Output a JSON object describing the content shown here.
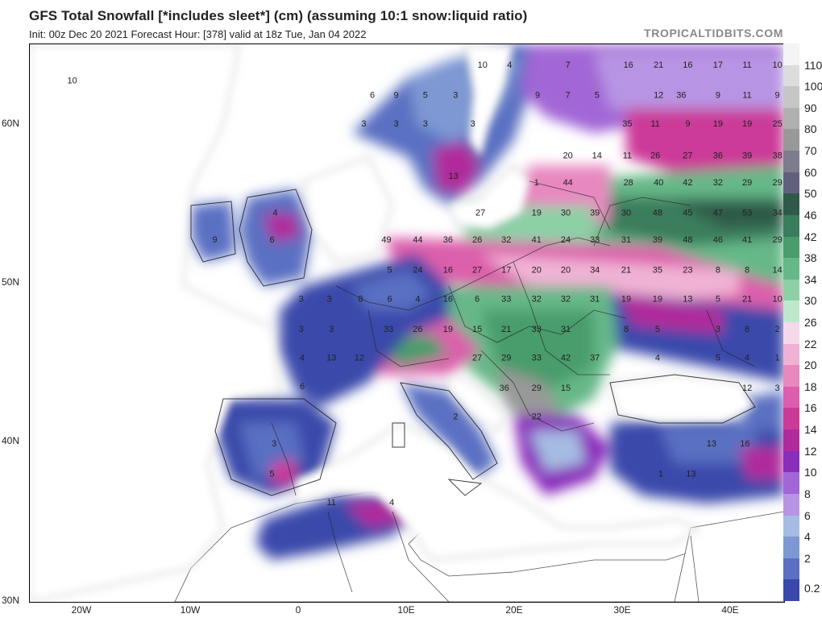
{
  "title": "GFS Total Snowfall [*includes sleet*] (cm) (assuming 10:1 snow:liquid ratio)",
  "subtitle": "Init: 00z Dec 20 2021   Forecast Hour: [378]   valid at 18z Tue, Jan 04 2022",
  "brand": "TROPICALTIDBITS.COM",
  "lat_labels": [
    "60N",
    "50N",
    "40N",
    "30N"
  ],
  "lon_labels": [
    "20W",
    "10W",
    "0",
    "10E",
    "20E",
    "30E",
    "40E"
  ],
  "colorbar": {
    "labels": [
      "110",
      "100",
      "90",
      "80",
      "70",
      "60",
      "50",
      "46",
      "42",
      "38",
      "34",
      "30",
      "26",
      "22",
      "20",
      "18",
      "16",
      "14",
      "12",
      "10",
      "8",
      "6",
      "4",
      "2",
      "0.2"
    ],
    "colors": [
      "#f4f4f4",
      "#dcdcdc",
      "#c6c6c6",
      "#b0b0b0",
      "#989898",
      "#7c7c8c",
      "#60607e",
      "#2f5a4a",
      "#3a7d5c",
      "#4a9c6c",
      "#66b888",
      "#8dd0a6",
      "#bde8cc",
      "#f6d8ea",
      "#f0b2d4",
      "#e888c0",
      "#dc5eac",
      "#cc3a98",
      "#b02a9c",
      "#8a2cbc",
      "#a266d6",
      "#b894e4",
      "#a6bce2",
      "#7e98d4",
      "#5a70c2",
      "#3a48aa"
    ]
  },
  "map_values": [
    {
      "t": "10",
      "lon": -21.0,
      "lat": 62.8
    },
    {
      "t": "10",
      "lon": 17.0,
      "lat": 63.8
    },
    {
      "t": "4",
      "lon": 19.5,
      "lat": 63.8
    },
    {
      "t": "7",
      "lon": 24.9,
      "lat": 63.8
    },
    {
      "t": "16",
      "lon": 30.5,
      "lat": 63.8
    },
    {
      "t": "21",
      "lon": 33.3,
      "lat": 63.8
    },
    {
      "t": "16",
      "lon": 36.0,
      "lat": 63.8
    },
    {
      "t": "17",
      "lon": 38.8,
      "lat": 63.8
    },
    {
      "t": "11",
      "lon": 41.5,
      "lat": 63.8
    },
    {
      "t": "10",
      "lon": 44.3,
      "lat": 63.8
    },
    {
      "t": "6",
      "lon": 6.8,
      "lat": 61.9
    },
    {
      "t": "9",
      "lon": 9.0,
      "lat": 61.9
    },
    {
      "t": "5",
      "lon": 11.7,
      "lat": 61.9
    },
    {
      "t": "3",
      "lon": 14.5,
      "lat": 61.9
    },
    {
      "t": "9",
      "lon": 22.1,
      "lat": 61.9
    },
    {
      "t": "7",
      "lon": 24.9,
      "lat": 61.9
    },
    {
      "t": "5",
      "lon": 27.6,
      "lat": 61.9
    },
    {
      "t": "12",
      "lon": 33.3,
      "lat": 61.9
    },
    {
      "t": "36",
      "lon": 35.4,
      "lat": 61.9
    },
    {
      "t": "9",
      "lon": 38.8,
      "lat": 61.9
    },
    {
      "t": "11",
      "lon": 41.5,
      "lat": 61.9
    },
    {
      "t": "9",
      "lon": 44.3,
      "lat": 61.9
    },
    {
      "t": "3",
      "lon": 6.0,
      "lat": 60.1
    },
    {
      "t": "3",
      "lon": 9.0,
      "lat": 60.1
    },
    {
      "t": "3",
      "lon": 11.7,
      "lat": 60.1
    },
    {
      "t": "3",
      "lon": 16.1,
      "lat": 60.1
    },
    {
      "t": "35",
      "lon": 30.4,
      "lat": 60.1
    },
    {
      "t": "11",
      "lon": 33.0,
      "lat": 60.1
    },
    {
      "t": "9",
      "lon": 36.0,
      "lat": 60.1
    },
    {
      "t": "19",
      "lon": 38.8,
      "lat": 60.1
    },
    {
      "t": "19",
      "lon": 41.5,
      "lat": 60.1
    },
    {
      "t": "25",
      "lon": 44.3,
      "lat": 60.1
    },
    {
      "t": "20",
      "lon": 24.9,
      "lat": 58.1
    },
    {
      "t": "14",
      "lon": 27.6,
      "lat": 58.1
    },
    {
      "t": "11",
      "lon": 30.4,
      "lat": 58.1
    },
    {
      "t": "26",
      "lon": 33.0,
      "lat": 58.1
    },
    {
      "t": "27",
      "lon": 36.0,
      "lat": 58.1
    },
    {
      "t": "36",
      "lon": 38.8,
      "lat": 58.1
    },
    {
      "t": "39",
      "lon": 41.5,
      "lat": 58.1
    },
    {
      "t": "38",
      "lon": 44.3,
      "lat": 58.1
    },
    {
      "t": "13",
      "lon": 14.3,
      "lat": 56.8
    },
    {
      "t": "1",
      "lon": 22.0,
      "lat": 56.4
    },
    {
      "t": "44",
      "lon": 24.9,
      "lat": 56.4
    },
    {
      "t": "28",
      "lon": 30.5,
      "lat": 56.4
    },
    {
      "t": "40",
      "lon": 33.3,
      "lat": 56.4
    },
    {
      "t": "42",
      "lon": 36.0,
      "lat": 56.4
    },
    {
      "t": "32",
      "lon": 38.8,
      "lat": 56.4
    },
    {
      "t": "29",
      "lon": 41.5,
      "lat": 56.4
    },
    {
      "t": "29",
      "lon": 44.3,
      "lat": 56.4
    },
    {
      "t": "4",
      "lon": -2.2,
      "lat": 54.5
    },
    {
      "t": "27",
      "lon": 16.8,
      "lat": 54.5
    },
    {
      "t": "19",
      "lon": 22.0,
      "lat": 54.5
    },
    {
      "t": "30",
      "lon": 24.7,
      "lat": 54.5
    },
    {
      "t": "39",
      "lon": 27.4,
      "lat": 54.5
    },
    {
      "t": "30",
      "lon": 30.3,
      "lat": 54.5
    },
    {
      "t": "48",
      "lon": 33.2,
      "lat": 54.5
    },
    {
      "t": "45",
      "lon": 36.0,
      "lat": 54.5
    },
    {
      "t": "47",
      "lon": 38.8,
      "lat": 54.5
    },
    {
      "t": "53",
      "lon": 41.5,
      "lat": 54.5
    },
    {
      "t": "34",
      "lon": 44.3,
      "lat": 54.5
    },
    {
      "t": "9",
      "lon": -7.8,
      "lat": 52.8
    },
    {
      "t": "6",
      "lon": -2.5,
      "lat": 52.8
    },
    {
      "t": "49",
      "lon": 8.1,
      "lat": 52.8
    },
    {
      "t": "44",
      "lon": 11.0,
      "lat": 52.8
    },
    {
      "t": "36",
      "lon": 13.8,
      "lat": 52.8
    },
    {
      "t": "26",
      "lon": 16.5,
      "lat": 52.8
    },
    {
      "t": "32",
      "lon": 19.2,
      "lat": 52.8
    },
    {
      "t": "41",
      "lon": 22.0,
      "lat": 52.8
    },
    {
      "t": "24",
      "lon": 24.7,
      "lat": 52.8
    },
    {
      "t": "33",
      "lon": 27.4,
      "lat": 52.8
    },
    {
      "t": "31",
      "lon": 30.3,
      "lat": 52.8
    },
    {
      "t": "39",
      "lon": 33.2,
      "lat": 52.8
    },
    {
      "t": "48",
      "lon": 36.0,
      "lat": 52.8
    },
    {
      "t": "46",
      "lon": 38.8,
      "lat": 52.8
    },
    {
      "t": "41",
      "lon": 41.5,
      "lat": 52.8
    },
    {
      "t": "29",
      "lon": 44.3,
      "lat": 52.8
    },
    {
      "t": "5",
      "lon": 8.4,
      "lat": 50.9
    },
    {
      "t": "24",
      "lon": 11.0,
      "lat": 50.9
    },
    {
      "t": "16",
      "lon": 13.8,
      "lat": 50.9
    },
    {
      "t": "27",
      "lon": 16.5,
      "lat": 50.9
    },
    {
      "t": "17",
      "lon": 19.2,
      "lat": 50.9
    },
    {
      "t": "20",
      "lon": 22.0,
      "lat": 50.9
    },
    {
      "t": "20",
      "lon": 24.7,
      "lat": 50.9
    },
    {
      "t": "34",
      "lon": 27.4,
      "lat": 50.9
    },
    {
      "t": "21",
      "lon": 30.3,
      "lat": 50.9
    },
    {
      "t": "35",
      "lon": 33.2,
      "lat": 50.9
    },
    {
      "t": "23",
      "lon": 36.0,
      "lat": 50.9
    },
    {
      "t": "8",
      "lon": 38.8,
      "lat": 50.9
    },
    {
      "t": "8",
      "lon": 41.5,
      "lat": 50.9
    },
    {
      "t": "14",
      "lon": 44.3,
      "lat": 50.9
    },
    {
      "t": "3",
      "lon": 0.2,
      "lat": 49.1
    },
    {
      "t": "3",
      "lon": 2.8,
      "lat": 49.1
    },
    {
      "t": "8",
      "lon": 5.7,
      "lat": 49.1
    },
    {
      "t": "6",
      "lon": 8.4,
      "lat": 49.1
    },
    {
      "t": "4",
      "lon": 11.0,
      "lat": 49.1
    },
    {
      "t": "16",
      "lon": 13.8,
      "lat": 49.1
    },
    {
      "t": "6",
      "lon": 16.5,
      "lat": 49.1
    },
    {
      "t": "33",
      "lon": 19.2,
      "lat": 49.1
    },
    {
      "t": "32",
      "lon": 22.0,
      "lat": 49.1
    },
    {
      "t": "32",
      "lon": 24.7,
      "lat": 49.1
    },
    {
      "t": "31",
      "lon": 27.4,
      "lat": 49.1
    },
    {
      "t": "19",
      "lon": 30.3,
      "lat": 49.1
    },
    {
      "t": "19",
      "lon": 33.2,
      "lat": 49.1
    },
    {
      "t": "13",
      "lon": 36.0,
      "lat": 49.1
    },
    {
      "t": "5",
      "lon": 38.8,
      "lat": 49.1
    },
    {
      "t": "21",
      "lon": 41.5,
      "lat": 49.1
    },
    {
      "t": "10",
      "lon": 44.3,
      "lat": 49.1
    },
    {
      "t": "3",
      "lon": 0.2,
      "lat": 47.2
    },
    {
      "t": "3",
      "lon": 3.0,
      "lat": 47.2
    },
    {
      "t": "33",
      "lon": 8.3,
      "lat": 47.2
    },
    {
      "t": "26",
      "lon": 11.0,
      "lat": 47.2
    },
    {
      "t": "19",
      "lon": 13.8,
      "lat": 47.2
    },
    {
      "t": "15",
      "lon": 16.5,
      "lat": 47.2
    },
    {
      "t": "21",
      "lon": 19.2,
      "lat": 47.2
    },
    {
      "t": "33",
      "lon": 22.0,
      "lat": 47.2
    },
    {
      "t": "31",
      "lon": 24.7,
      "lat": 47.2
    },
    {
      "t": "8",
      "lon": 30.3,
      "lat": 47.2
    },
    {
      "t": "5",
      "lon": 33.2,
      "lat": 47.2
    },
    {
      "t": "3",
      "lon": 38.8,
      "lat": 47.2
    },
    {
      "t": "8",
      "lon": 41.5,
      "lat": 47.2
    },
    {
      "t": "2",
      "lon": 44.3,
      "lat": 47.2
    },
    {
      "t": "4",
      "lon": 0.3,
      "lat": 45.4
    },
    {
      "t": "13",
      "lon": 3.0,
      "lat": 45.4
    },
    {
      "t": "12",
      "lon": 5.6,
      "lat": 45.4
    },
    {
      "t": "27",
      "lon": 16.5,
      "lat": 45.4
    },
    {
      "t": "29",
      "lon": 19.2,
      "lat": 45.4
    },
    {
      "t": "33",
      "lon": 22.0,
      "lat": 45.4
    },
    {
      "t": "42",
      "lon": 24.7,
      "lat": 45.4
    },
    {
      "t": "37",
      "lon": 27.4,
      "lat": 45.4
    },
    {
      "t": "4",
      "lon": 33.2,
      "lat": 45.4
    },
    {
      "t": "5",
      "lon": 38.8,
      "lat": 45.4
    },
    {
      "t": "4",
      "lon": 41.5,
      "lat": 45.4
    },
    {
      "t": "1",
      "lon": 44.3,
      "lat": 45.4
    },
    {
      "t": "6",
      "lon": 0.3,
      "lat": 43.6
    },
    {
      "t": "36",
      "lon": 19.0,
      "lat": 43.5
    },
    {
      "t": "29",
      "lon": 22.0,
      "lat": 43.5
    },
    {
      "t": "15",
      "lon": 24.7,
      "lat": 43.5
    },
    {
      "t": "12",
      "lon": 41.5,
      "lat": 43.5
    },
    {
      "t": "3",
      "lon": 44.3,
      "lat": 43.5
    },
    {
      "t": "2",
      "lon": 14.5,
      "lat": 41.7
    },
    {
      "t": "22",
      "lon": 22.0,
      "lat": 41.7
    },
    {
      "t": "3",
      "lon": -2.3,
      "lat": 40.0
    },
    {
      "t": "13",
      "lon": 38.2,
      "lat": 40.0
    },
    {
      "t": "16",
      "lon": 41.3,
      "lat": 40.0
    },
    {
      "t": "5",
      "lon": -2.5,
      "lat": 38.1
    },
    {
      "t": "1",
      "lon": 33.5,
      "lat": 38.1
    },
    {
      "t": "13",
      "lon": 36.3,
      "lat": 38.1
    },
    {
      "t": "11",
      "lon": 3.0,
      "lat": 36.3
    },
    {
      "t": "4",
      "lon": 8.6,
      "lat": 36.3
    }
  ]
}
